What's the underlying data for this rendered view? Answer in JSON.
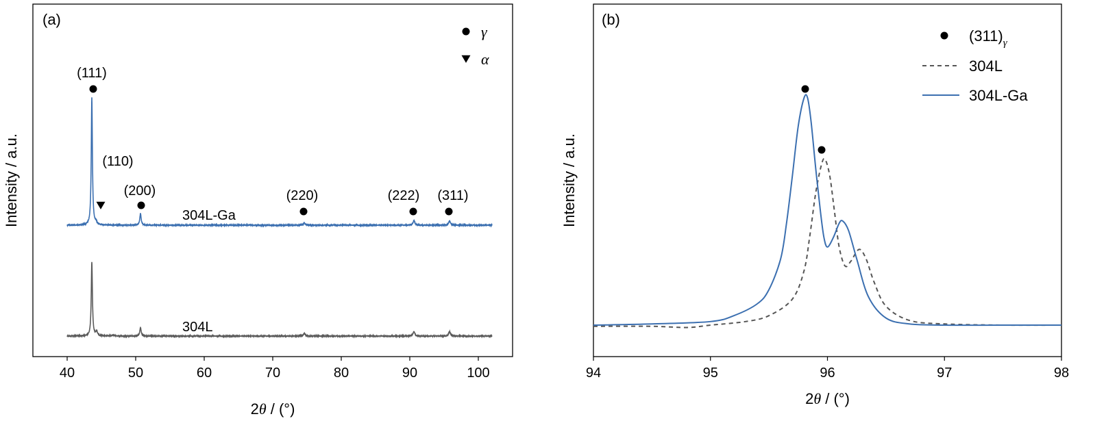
{
  "chart_data": [
    {
      "type": "line",
      "panel_label": "(a)",
      "xlabel_prefix": "2",
      "xlabel_symbol": "θ",
      "xlabel_suffix": " / (°)",
      "ylabel": "Intensity / a.u.",
      "xlim": [
        35,
        105
      ],
      "x_ticks": [
        40,
        50,
        60,
        70,
        80,
        90,
        100
      ],
      "y_ticks": false,
      "grid": false,
      "legend": {
        "placement": "top-right",
        "entries": [
          {
            "marker": "circle",
            "symbol": "γ"
          },
          {
            "marker": "triangle-down",
            "symbol": "α"
          }
        ]
      },
      "series": [
        {
          "name": "304L-Ga",
          "color": "#3b6fb0",
          "baseline": 0.62,
          "noise": 0.003,
          "peaks": [
            {
              "x": 43.6,
              "height": 6.0,
              "width": 0.1
            },
            {
              "x": 44.2,
              "height": 0.12,
              "width": 0.15
            },
            {
              "x": 50.7,
              "height": 0.55,
              "width": 0.12
            },
            {
              "x": 74.6,
              "height": 0.1,
              "width": 0.15
            },
            {
              "x": 90.6,
              "height": 0.22,
              "width": 0.15
            },
            {
              "x": 95.8,
              "height": 0.2,
              "width": 0.15
            }
          ]
        },
        {
          "name": "304L",
          "color": "#5a5a5a",
          "baseline": 0.0,
          "noise": 0.003,
          "peaks": [
            {
              "x": 43.6,
              "height": 3.5,
              "width": 0.1
            },
            {
              "x": 44.3,
              "height": 0.2,
              "width": 0.15
            },
            {
              "x": 46.8,
              "height": 0.03,
              "width": 0.3
            },
            {
              "x": 50.7,
              "height": 0.4,
              "width": 0.12
            },
            {
              "x": 74.6,
              "height": 0.13,
              "width": 0.15
            },
            {
              "x": 90.6,
              "height": 0.22,
              "width": 0.15
            },
            {
              "x": 95.8,
              "height": 0.22,
              "width": 0.15
            }
          ]
        }
      ],
      "annotations": [
        {
          "text": "(111)",
          "x": 43.6,
          "marker": "circle"
        },
        {
          "text": "(110)",
          "x": 44.4,
          "marker": "triangle-down"
        },
        {
          "text": "(200)",
          "x": 50.7,
          "marker": "circle"
        },
        {
          "text": "(220)",
          "x": 74.6,
          "marker": "circle"
        },
        {
          "text": "(222)",
          "x": 90.6,
          "marker": "circle"
        },
        {
          "text": "(311)",
          "x": 95.9,
          "marker": "circle"
        }
      ],
      "series_labels": [
        {
          "text": "304L-Ga",
          "x": 68.5
        },
        {
          "text": "304L",
          "x": 68.5
        }
      ]
    },
    {
      "type": "line",
      "panel_label": "(b)",
      "xlabel_prefix": "2",
      "xlabel_symbol": "θ",
      "xlabel_suffix": " / (°)",
      "ylabel": "Intensity / a.u.",
      "xlim": [
        94,
        98
      ],
      "x_ticks": [
        94,
        95,
        96,
        97,
        98
      ],
      "y_ticks": false,
      "grid": false,
      "legend": {
        "placement": "top-right",
        "entries": [
          {
            "marker": "circle",
            "text": "(311)",
            "subscript": "γ"
          },
          {
            "line": "dashed",
            "text": "304L",
            "color": "#555555"
          },
          {
            "line": "solid",
            "text": "304L-Ga",
            "color": "#3b6fb0"
          }
        ]
      },
      "series": [
        {
          "name": "304L-Ga",
          "color": "#3b6fb0",
          "dash": false,
          "x": [
            94.0,
            94.5,
            95.0,
            95.2,
            95.4,
            95.5,
            95.6,
            95.65,
            95.7,
            95.75,
            95.8,
            95.83,
            95.86,
            95.9,
            95.94,
            95.97,
            96.0,
            96.05,
            96.1,
            96.13,
            96.18,
            96.25,
            96.35,
            96.5,
            96.7,
            97.0,
            97.5,
            98.0
          ],
          "y": [
            0.02,
            0.025,
            0.035,
            0.06,
            0.11,
            0.17,
            0.3,
            0.45,
            0.65,
            0.86,
            0.98,
            0.98,
            0.88,
            0.68,
            0.5,
            0.39,
            0.35,
            0.39,
            0.45,
            0.46,
            0.42,
            0.3,
            0.14,
            0.05,
            0.025,
            0.02,
            0.02,
            0.02
          ]
        },
        {
          "name": "304L",
          "color": "#555555",
          "dash": true,
          "x": [
            94.0,
            94.5,
            94.8,
            95.0,
            95.3,
            95.5,
            95.7,
            95.8,
            95.85,
            95.9,
            95.95,
            95.98,
            96.02,
            96.06,
            96.1,
            96.15,
            96.2,
            96.27,
            96.33,
            96.4,
            96.5,
            96.7,
            97.0,
            97.5,
            98.0
          ],
          "y": [
            0.015,
            0.015,
            0.01,
            0.02,
            0.035,
            0.06,
            0.13,
            0.25,
            0.4,
            0.58,
            0.7,
            0.72,
            0.65,
            0.5,
            0.35,
            0.27,
            0.29,
            0.34,
            0.3,
            0.2,
            0.1,
            0.04,
            0.025,
            0.02,
            0.02
          ]
        }
      ],
      "annotations": [
        {
          "marker": "circle",
          "x": 95.82,
          "y": 1.05
        },
        {
          "marker": "circle",
          "x": 95.97,
          "y": 0.8
        }
      ]
    }
  ]
}
